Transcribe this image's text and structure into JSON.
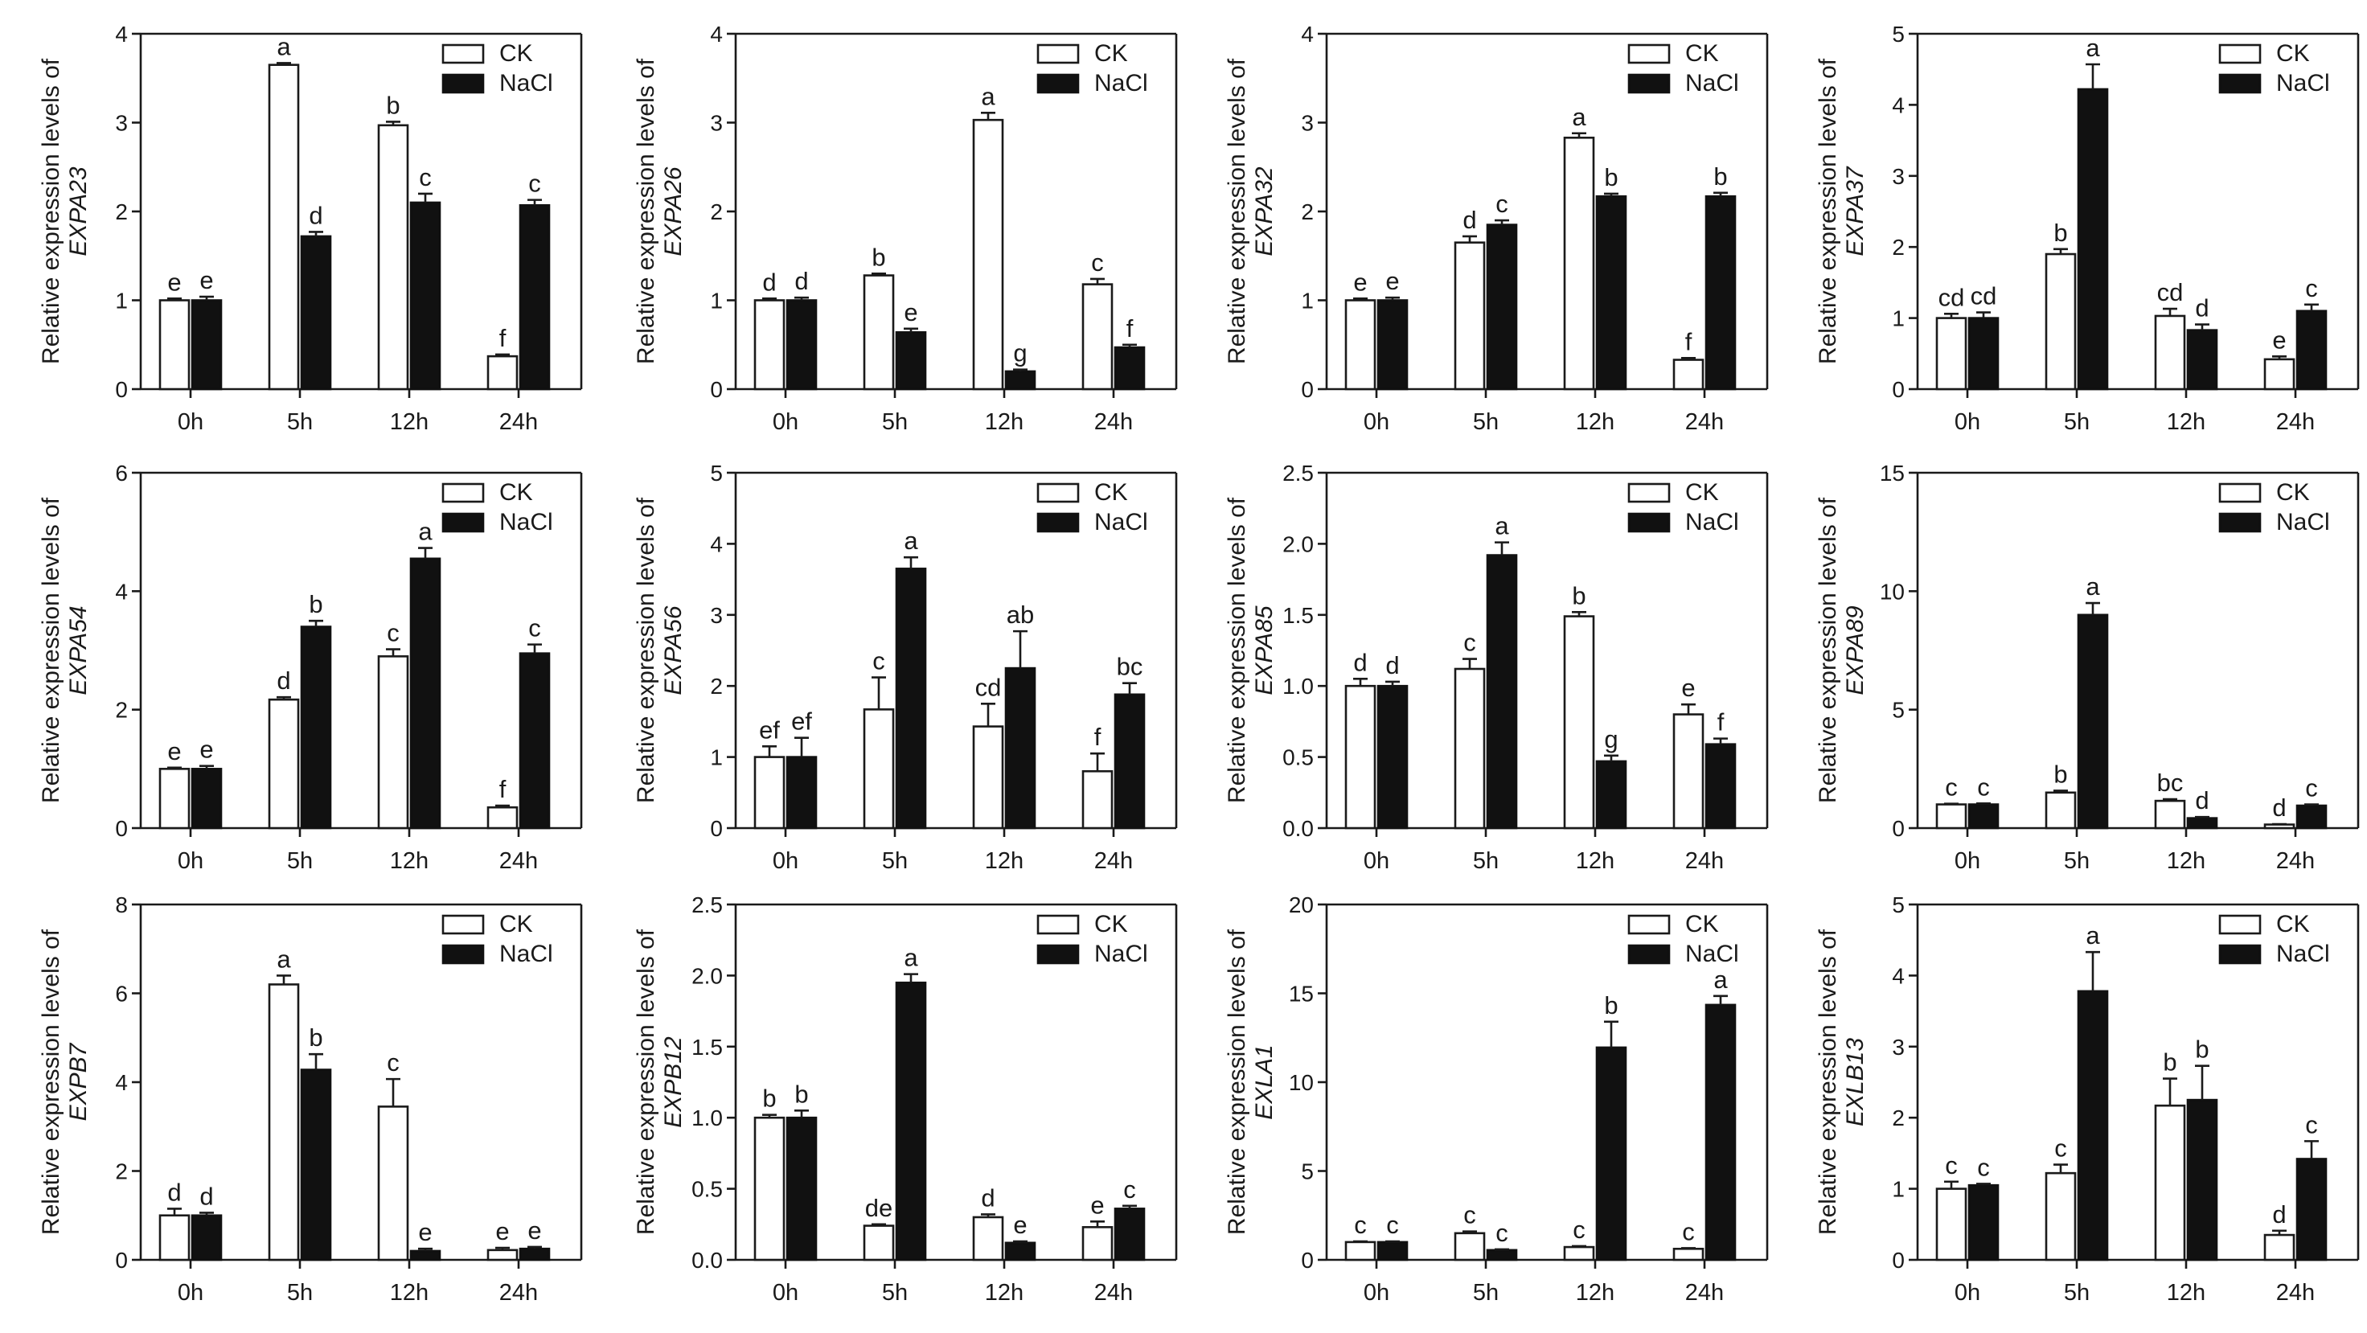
{
  "legend": {
    "ck_label": "CK",
    "nacl_label": "NaCl"
  },
  "ylabel_prefix": "Relative expression levels of",
  "chart_data": [
    {
      "type": "bar",
      "gene": "EXPA23",
      "categories": [
        "0h",
        "5h",
        "12h",
        "24h"
      ],
      "ylim": [
        0,
        4
      ],
      "yticks": [
        "0",
        "1",
        "2",
        "3",
        "4"
      ],
      "series": [
        {
          "name": "CK",
          "values": [
            1.0,
            3.65,
            2.97,
            0.37
          ],
          "errors": [
            0.02,
            0.02,
            0.04,
            0.02
          ],
          "labels": [
            "e",
            "a",
            "b",
            "f"
          ]
        },
        {
          "name": "NaCl",
          "values": [
            1.0,
            1.72,
            2.1,
            2.07
          ],
          "errors": [
            0.04,
            0.05,
            0.1,
            0.06
          ],
          "labels": [
            "e",
            "d",
            "c",
            "c"
          ]
        }
      ]
    },
    {
      "type": "bar",
      "gene": "EXPA26",
      "categories": [
        "0h",
        "5h",
        "12h",
        "24h"
      ],
      "ylim": [
        0,
        4
      ],
      "yticks": [
        "0",
        "1",
        "2",
        "3",
        "4"
      ],
      "series": [
        {
          "name": "CK",
          "values": [
            1.0,
            1.28,
            3.03,
            1.18
          ],
          "errors": [
            0.02,
            0.02,
            0.08,
            0.06
          ],
          "labels": [
            "d",
            "b",
            "a",
            "c"
          ]
        },
        {
          "name": "NaCl",
          "values": [
            1.0,
            0.64,
            0.2,
            0.47
          ],
          "errors": [
            0.03,
            0.04,
            0.02,
            0.03
          ],
          "labels": [
            "d",
            "e",
            "g",
            "f"
          ]
        }
      ]
    },
    {
      "type": "bar",
      "gene": "EXPA32",
      "categories": [
        "0h",
        "5h",
        "12h",
        "24h"
      ],
      "ylim": [
        0,
        4
      ],
      "yticks": [
        "0",
        "1",
        "2",
        "3",
        "4"
      ],
      "series": [
        {
          "name": "CK",
          "values": [
            1.0,
            1.65,
            2.83,
            0.33
          ],
          "errors": [
            0.02,
            0.07,
            0.05,
            0.02
          ],
          "labels": [
            "e",
            "d",
            "a",
            "f"
          ]
        },
        {
          "name": "NaCl",
          "values": [
            1.0,
            1.85,
            2.17,
            2.17
          ],
          "errors": [
            0.03,
            0.05,
            0.03,
            0.04
          ],
          "labels": [
            "e",
            "c",
            "b",
            "b"
          ]
        }
      ]
    },
    {
      "type": "bar",
      "gene": "EXPA37",
      "categories": [
        "0h",
        "5h",
        "12h",
        "24h"
      ],
      "ylim": [
        0,
        5
      ],
      "yticks": [
        "0",
        "1",
        "2",
        "3",
        "4",
        "5"
      ],
      "series": [
        {
          "name": "CK",
          "values": [
            1.0,
            1.9,
            1.03,
            0.42
          ],
          "errors": [
            0.06,
            0.07,
            0.1,
            0.04
          ],
          "labels": [
            "cd",
            "b",
            "cd",
            "e"
          ]
        },
        {
          "name": "NaCl",
          "values": [
            1.0,
            4.22,
            0.83,
            1.1
          ],
          "errors": [
            0.08,
            0.35,
            0.08,
            0.09
          ],
          "labels": [
            "cd",
            "a",
            "d",
            "c"
          ]
        }
      ]
    },
    {
      "type": "bar",
      "gene": "EXPA54",
      "categories": [
        "0h",
        "5h",
        "12h",
        "24h"
      ],
      "ylim": [
        0,
        6
      ],
      "yticks": [
        "0",
        "2",
        "4",
        "6"
      ],
      "series": [
        {
          "name": "CK",
          "values": [
            1.0,
            2.17,
            2.9,
            0.35
          ],
          "errors": [
            0.02,
            0.04,
            0.12,
            0.03
          ],
          "labels": [
            "e",
            "d",
            "c",
            "f"
          ]
        },
        {
          "name": "NaCl",
          "values": [
            1.0,
            3.4,
            4.55,
            2.95
          ],
          "errors": [
            0.05,
            0.1,
            0.18,
            0.15
          ],
          "labels": [
            "e",
            "b",
            "a",
            "c"
          ]
        }
      ]
    },
    {
      "type": "bar",
      "gene": "EXPA56",
      "categories": [
        "0h",
        "5h",
        "12h",
        "24h"
      ],
      "ylim": [
        0,
        5
      ],
      "yticks": [
        "0",
        "1",
        "2",
        "3",
        "4",
        "5"
      ],
      "series": [
        {
          "name": "CK",
          "values": [
            1.0,
            1.67,
            1.43,
            0.8
          ],
          "errors": [
            0.15,
            0.45,
            0.32,
            0.25
          ],
          "labels": [
            "ef",
            "c",
            "cd",
            "f"
          ]
        },
        {
          "name": "NaCl",
          "values": [
            1.0,
            3.65,
            2.25,
            1.88
          ],
          "errors": [
            0.27,
            0.16,
            0.52,
            0.16
          ],
          "labels": [
            "ef",
            "a",
            "ab",
            "bc"
          ]
        }
      ]
    },
    {
      "type": "bar",
      "gene": "EXPA85",
      "categories": [
        "0h",
        "5h",
        "12h",
        "24h"
      ],
      "ylim": [
        0,
        2.5
      ],
      "yticks": [
        "0.0",
        "0.5",
        "1.0",
        "1.5",
        "2.0",
        "2.5"
      ],
      "series": [
        {
          "name": "CK",
          "values": [
            1.0,
            1.12,
            1.49,
            0.8
          ],
          "errors": [
            0.05,
            0.07,
            0.03,
            0.07
          ],
          "labels": [
            "d",
            "c",
            "b",
            "e"
          ]
        },
        {
          "name": "NaCl",
          "values": [
            1.0,
            1.92,
            0.47,
            0.59
          ],
          "errors": [
            0.03,
            0.09,
            0.04,
            0.04
          ],
          "labels": [
            "d",
            "a",
            "g",
            "f"
          ]
        }
      ]
    },
    {
      "type": "bar",
      "gene": "EXPA89",
      "categories": [
        "0h",
        "5h",
        "12h",
        "24h"
      ],
      "ylim": [
        0,
        15
      ],
      "yticks": [
        "0",
        "5",
        "10",
        "15"
      ],
      "series": [
        {
          "name": "CK",
          "values": [
            1.0,
            1.5,
            1.15,
            0.15
          ],
          "errors": [
            0.03,
            0.08,
            0.07,
            0.02
          ],
          "labels": [
            "c",
            "b",
            "bc",
            "d"
          ]
        },
        {
          "name": "NaCl",
          "values": [
            1.0,
            9.0,
            0.42,
            0.95
          ],
          "errors": [
            0.04,
            0.5,
            0.05,
            0.05
          ],
          "labels": [
            "c",
            "a",
            "d",
            "c"
          ]
        }
      ]
    },
    {
      "type": "bar",
      "gene": "EXPB7",
      "categories": [
        "0h",
        "5h",
        "12h",
        "24h"
      ],
      "ylim": [
        0,
        8
      ],
      "yticks": [
        "0",
        "2",
        "4",
        "6",
        "8"
      ],
      "series": [
        {
          "name": "CK",
          "values": [
            1.0,
            6.2,
            3.45,
            0.22
          ],
          "errors": [
            0.15,
            0.2,
            0.62,
            0.05
          ],
          "labels": [
            "d",
            "a",
            "c",
            "e"
          ]
        },
        {
          "name": "NaCl",
          "values": [
            1.0,
            4.28,
            0.2,
            0.25
          ],
          "errors": [
            0.06,
            0.35,
            0.05,
            0.04
          ],
          "labels": [
            "d",
            "b",
            "e",
            "e"
          ]
        }
      ]
    },
    {
      "type": "bar",
      "gene": "EXPB12",
      "categories": [
        "0h",
        "5h",
        "12h",
        "24h"
      ],
      "ylim": [
        0,
        2.5
      ],
      "yticks": [
        "0.0",
        "0.5",
        "1.0",
        "1.5",
        "2.0",
        "2.5"
      ],
      "series": [
        {
          "name": "CK",
          "values": [
            1.0,
            0.24,
            0.3,
            0.23
          ],
          "errors": [
            0.02,
            0.01,
            0.02,
            0.04
          ],
          "labels": [
            "b",
            "de",
            "d",
            "e"
          ]
        },
        {
          "name": "NaCl",
          "values": [
            1.0,
            1.95,
            0.12,
            0.36
          ],
          "errors": [
            0.05,
            0.06,
            0.01,
            0.02
          ],
          "labels": [
            "b",
            "a",
            "e",
            "c"
          ]
        }
      ]
    },
    {
      "type": "bar",
      "gene": "EXLA1",
      "categories": [
        "0h",
        "5h",
        "12h",
        "24h"
      ],
      "ylim": [
        0,
        20
      ],
      "yticks": [
        "0",
        "5",
        "10",
        "15",
        "20"
      ],
      "series": [
        {
          "name": "CK",
          "values": [
            1.0,
            1.5,
            0.72,
            0.62
          ],
          "errors": [
            0.04,
            0.1,
            0.05,
            0.04
          ],
          "labels": [
            "c",
            "c",
            "c",
            "c"
          ]
        },
        {
          "name": "NaCl",
          "values": [
            1.0,
            0.55,
            11.95,
            14.35
          ],
          "errors": [
            0.04,
            0.04,
            1.45,
            0.5
          ],
          "labels": [
            "c",
            "c",
            "b",
            "a"
          ]
        }
      ]
    },
    {
      "type": "bar",
      "gene": "EXLB13",
      "categories": [
        "0h",
        "5h",
        "12h",
        "24h"
      ],
      "ylim": [
        0,
        5
      ],
      "yticks": [
        "0",
        "1",
        "2",
        "3",
        "4",
        "5"
      ],
      "series": [
        {
          "name": "CK",
          "values": [
            1.0,
            1.22,
            2.17,
            0.35
          ],
          "errors": [
            0.1,
            0.12,
            0.38,
            0.06
          ],
          "labels": [
            "c",
            "c",
            "b",
            "d"
          ]
        },
        {
          "name": "NaCl",
          "values": [
            1.05,
            3.78,
            2.25,
            1.42
          ],
          "errors": [
            0.02,
            0.55,
            0.48,
            0.25
          ],
          "labels": [
            "c",
            "a",
            "b",
            "c"
          ]
        }
      ]
    }
  ]
}
